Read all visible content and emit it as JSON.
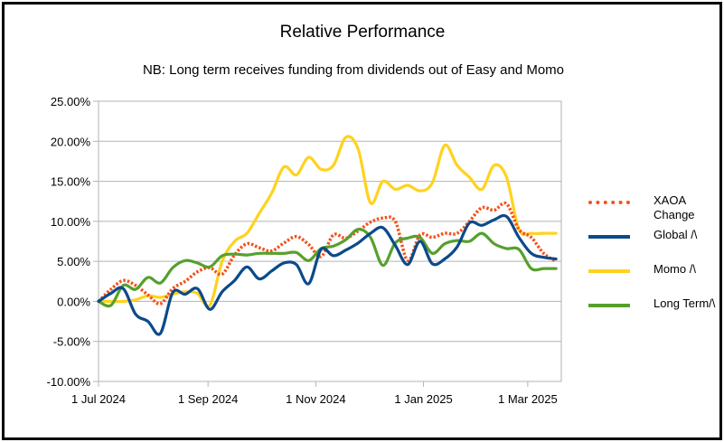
{
  "chart_data": {
    "type": "line",
    "title": "Relative Performance",
    "subtitle": "NB: Long term receives funding from dividends out of Easy and Momo",
    "xlabel": "",
    "ylabel": "",
    "x_ticks": [
      "1 Jul 2024",
      "1 Sep 2024",
      "1 Nov 2024",
      "1 Jan 2025",
      "1 Mar 2025"
    ],
    "y_ticks": [
      "25.00%",
      "20.00%",
      "15.00%",
      "10.00%",
      "5.00%",
      "0.00%",
      "-5.00%",
      "-10.00%"
    ],
    "ylim": [
      -10,
      25
    ],
    "xlim": [
      "2024-07-01",
      "2025-03-20"
    ],
    "grid": "horizontal",
    "legend_position": "right",
    "x": [
      "2024-07-01",
      "2024-07-08",
      "2024-07-15",
      "2024-07-22",
      "2024-07-29",
      "2024-08-05",
      "2024-08-12",
      "2024-08-19",
      "2024-08-26",
      "2024-09-02",
      "2024-09-09",
      "2024-09-16",
      "2024-09-23",
      "2024-09-30",
      "2024-10-07",
      "2024-10-14",
      "2024-10-21",
      "2024-10-28",
      "2024-11-04",
      "2024-11-11",
      "2024-11-18",
      "2024-11-25",
      "2024-12-02",
      "2024-12-09",
      "2024-12-16",
      "2024-12-23",
      "2024-12-30",
      "2025-01-06",
      "2025-01-13",
      "2025-01-20",
      "2025-01-27",
      "2025-02-03",
      "2025-02-10",
      "2025-02-17",
      "2025-02-24",
      "2025-03-03",
      "2025-03-10",
      "2025-03-17"
    ],
    "series": [
      {
        "name": "XAOA Change",
        "color": "#f4511e",
        "style": "dotted",
        "values": [
          0,
          1.5,
          2.6,
          2.0,
          0.8,
          -0.3,
          1.6,
          2.5,
          3.7,
          4.2,
          3.4,
          5.8,
          7.2,
          6.7,
          6.3,
          7.3,
          8.1,
          7.1,
          5.6,
          8.3,
          7.9,
          8.8,
          9.9,
          10.4,
          10.0,
          5.1,
          8.3,
          8.0,
          8.5,
          8.5,
          10.0,
          11.7,
          11.4,
          12.2,
          9.0,
          8.0,
          6.0,
          5.0
        ]
      },
      {
        "name": "Global /\\",
        "color": "#0b4a8b",
        "style": "solid",
        "values": [
          0,
          1.0,
          1.6,
          -1.6,
          -2.5,
          -4.0,
          1.1,
          0.9,
          1.6,
          -1.0,
          1.2,
          2.6,
          4.3,
          2.8,
          3.8,
          4.8,
          4.6,
          2.2,
          6.5,
          5.7,
          6.4,
          7.3,
          8.5,
          9.2,
          7.0,
          4.6,
          7.5,
          4.7,
          5.3,
          6.8,
          9.8,
          9.5,
          10.2,
          10.6,
          8.0,
          6.0,
          5.5,
          5.3
        ]
      },
      {
        "name": "Momo /\\",
        "color": "#ffd21f",
        "style": "solid",
        "values": [
          0,
          0,
          0,
          0.2,
          0.7,
          0.5,
          0.9,
          1.2,
          1.0,
          -0.5,
          5.0,
          7.5,
          8.5,
          11.0,
          13.5,
          16.8,
          15.8,
          18.0,
          16.5,
          17.0,
          20.5,
          19.0,
          12.3,
          15.0,
          14.0,
          14.5,
          13.8,
          14.8,
          19.5,
          17.0,
          15.5,
          14.0,
          17.0,
          15.5,
          9.0,
          8.5,
          8.5,
          8.5
        ]
      },
      {
        "name": "Long Term/\\",
        "color": "#56a02d",
        "style": "solid",
        "values": [
          0,
          -0.5,
          2.0,
          1.5,
          3.0,
          2.3,
          4.2,
          5.1,
          4.8,
          4.3,
          5.7,
          5.9,
          5.8,
          6.0,
          6.0,
          6.0,
          6.1,
          5.1,
          6.6,
          6.9,
          7.7,
          9.0,
          8.0,
          4.5,
          7.3,
          7.9,
          8.0,
          6.0,
          7.2,
          7.6,
          7.5,
          8.5,
          7.2,
          6.6,
          6.5,
          4.1,
          4.1,
          4.1
        ]
      }
    ]
  },
  "legend": [
    {
      "label": "XAOA Change",
      "color": "#f4511e",
      "style": "dotted"
    },
    {
      "label": "Global /\\",
      "color": "#0b4a8b",
      "style": "solid"
    },
    {
      "label": "Momo /\\",
      "color": "#ffd21f",
      "style": "solid"
    },
    {
      "label": "Long Term/\\",
      "color": "#56a02d",
      "style": "solid"
    }
  ]
}
